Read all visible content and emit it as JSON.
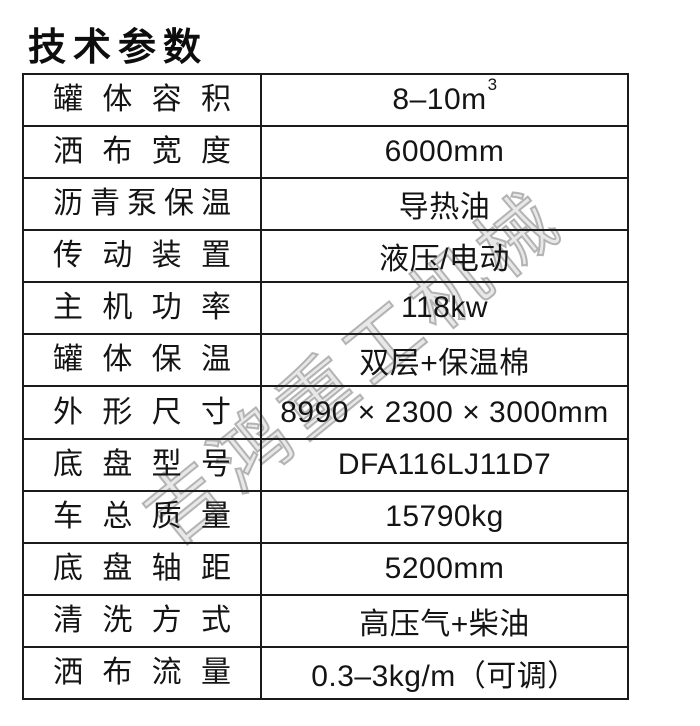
{
  "page": {
    "title": "技术参数"
  },
  "watermark": {
    "text": "吉鸿重工机械"
  },
  "colors": {
    "background": "#ffffff",
    "border": "#1b1b1b",
    "text": "#141414",
    "watermark": "#b2b2b2"
  },
  "table": {
    "rows": [
      {
        "label": "罐体容积",
        "value": "8–10m",
        "value_sup": "3"
      },
      {
        "label": "洒布宽度",
        "value": "6000mm",
        "value_sup": ""
      },
      {
        "label": "沥青泵保温",
        "value": "导热油",
        "value_sup": ""
      },
      {
        "label": "传动装置",
        "value": "液压/电动",
        "value_sup": ""
      },
      {
        "label": "主机功率",
        "value": "118kw",
        "value_sup": ""
      },
      {
        "label": "罐体保温",
        "value": "双层+保温棉",
        "value_sup": ""
      },
      {
        "label": "外形尺寸",
        "value": "8990 × 2300 × 3000mm",
        "value_sup": ""
      },
      {
        "label": "底盘型号",
        "value": "DFA116LJ11D7",
        "value_sup": ""
      },
      {
        "label": "车总质量",
        "value": "15790kg",
        "value_sup": ""
      },
      {
        "label": "底盘轴距",
        "value": "5200mm",
        "value_sup": ""
      },
      {
        "label": "清洗方式",
        "value": "高压气+柴油",
        "value_sup": ""
      },
      {
        "label": "洒布流量",
        "value": "0.3–3kg/m（可调）",
        "value_sup": ""
      }
    ]
  }
}
